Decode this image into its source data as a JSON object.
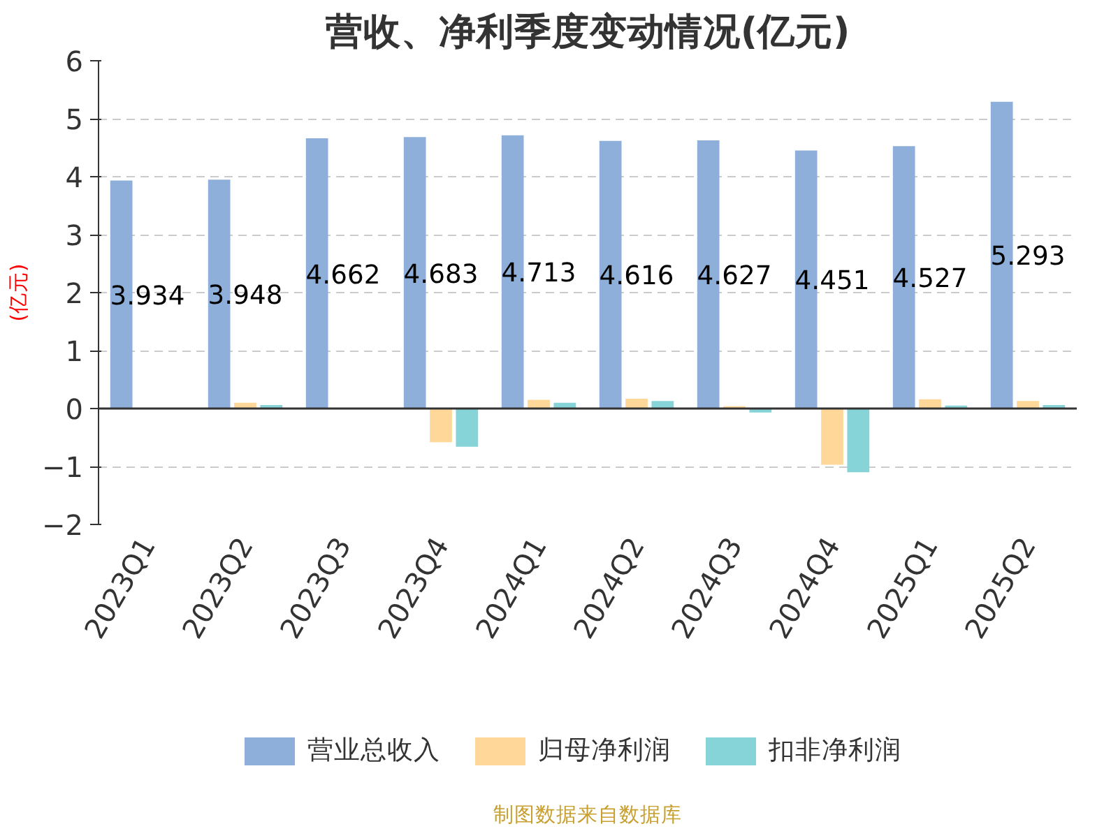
{
  "chart_data": {
    "type": "bar",
    "title": "营收、净利季度变动情况(亿元)",
    "ylabel": "(亿元)",
    "categories": [
      "2023Q1",
      "2023Q2",
      "2023Q3",
      "2023Q4",
      "2024Q1",
      "2024Q2",
      "2024Q3",
      "2024Q4",
      "2025Q1",
      "2025Q2"
    ],
    "series": [
      {
        "name": "营业总收入",
        "color": "#8fafdb",
        "values": [
          3.934,
          3.948,
          4.662,
          4.683,
          4.713,
          4.616,
          4.627,
          4.451,
          4.527,
          5.293
        ],
        "value_labels": [
          "3.934",
          "3.948",
          "4.662",
          "4.683",
          "4.713",
          "4.616",
          "4.627",
          "4.451",
          "4.527",
          "5.293"
        ]
      },
      {
        "name": "归母净利润",
        "color": "#ffd899",
        "values": [
          null,
          0.1,
          null,
          -0.58,
          0.15,
          0.17,
          0.04,
          -0.97,
          0.16,
          0.13
        ]
      },
      {
        "name": "扣非净利润",
        "color": "#86d4d8",
        "values": [
          null,
          0.06,
          null,
          -0.66,
          0.1,
          0.13,
          -0.07,
          -1.1,
          0.05,
          0.06
        ]
      }
    ],
    "ylim": [
      -2,
      6
    ],
    "yticks": [
      -2,
      -1,
      0,
      1,
      2,
      3,
      4,
      5,
      6
    ],
    "grid": "y",
    "legend": "bottom",
    "annotations": [
      "制图数据来自数据库"
    ]
  }
}
